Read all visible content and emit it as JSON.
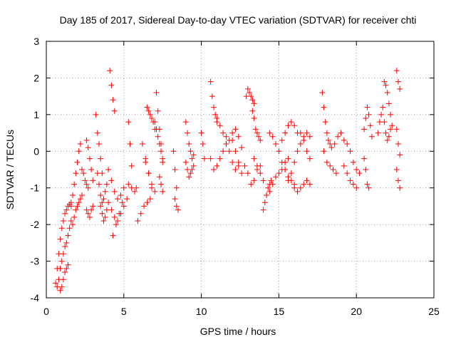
{
  "chart_data": {
    "type": "scatter",
    "title": "Day 185 of 2017, Sidereal Day-to-day VTEC variation (SDTVAR) for receiver chti",
    "xlabel": "GPS time / hours",
    "ylabel": "SDTVAR / TECUs",
    "xlim": [
      0,
      25
    ],
    "ylim": [
      -4,
      3
    ],
    "xticks": [
      0,
      5,
      10,
      15,
      20,
      25
    ],
    "yticks": [
      -4,
      -3,
      -2,
      -1,
      0,
      1,
      2,
      3
    ],
    "grid": true,
    "marker": "plus",
    "marker_color": "#ff0000",
    "series": [
      {
        "segments": [
          {
            "x": [
              0.6,
              0.7,
              0.8,
              0.9,
              1.0,
              1.1,
              1.2,
              1.3,
              1.4,
              1.5,
              1.6
            ],
            "y": [
              -3.6,
              -3.2,
              -2.8,
              -2.4,
              -2.1,
              -1.9,
              -1.7,
              -1.6,
              -1.5,
              -1.45,
              -1.4
            ]
          },
          {
            "x": [
              0.7,
              0.8,
              0.9,
              1.0,
              1.1,
              1.2,
              1.3,
              1.4,
              1.5,
              1.6
            ],
            "y": [
              -3.7,
              -3.5,
              -3.2,
              -3.0,
              -2.8,
              -2.6,
              -2.5,
              -2.3,
              -2.1,
              -1.9
            ]
          },
          {
            "x": [
              0.9,
              1.0,
              1.1,
              1.2,
              1.3,
              1.4
            ],
            "y": [
              -3.8,
              -3.7,
              -3.5,
              -3.3,
              -3.2,
              -3.1
            ]
          },
          {
            "x": [
              1.6,
              1.7,
              1.8,
              1.9,
              2.0,
              2.1,
              2.2
            ],
            "y": [
              -1.5,
              -1.2,
              -0.9,
              -0.6,
              -0.3,
              0.0,
              0.2
            ]
          },
          {
            "x": [
              1.7,
              1.8,
              1.9,
              2.0,
              2.1,
              2.2,
              2.3
            ],
            "y": [
              -2.0,
              -1.8,
              -1.6,
              -1.5,
              -1.4,
              -1.3,
              -1.2
            ]
          },
          {
            "x": [
              2.3,
              2.4,
              2.5,
              2.6,
              2.7
            ],
            "y": [
              -0.5,
              -0.6,
              -0.8,
              -0.9,
              -1.0
            ]
          },
          {
            "x": [
              2.6,
              2.7,
              2.8,
              2.9,
              3.0
            ],
            "y": [
              0.3,
              0.1,
              -0.2,
              -0.5,
              -0.8
            ]
          },
          {
            "x": [
              2.6,
              2.7,
              2.8,
              2.9,
              3.0
            ],
            "y": [
              -1.6,
              -1.7,
              -1.8,
              -1.6,
              -1.5
            ]
          },
          {
            "x": [
              3.2,
              3.3,
              3.4,
              3.5,
              3.6
            ],
            "y": [
              1.0,
              0.5,
              0.2,
              -0.2,
              -0.6
            ]
          },
          {
            "x": [
              3.3,
              3.4,
              3.5,
              3.6,
              3.7,
              3.8,
              3.9
            ],
            "y": [
              -0.6,
              -0.9,
              -1.2,
              -1.4,
              -1.3,
              -1.1,
              -0.9
            ]
          },
          {
            "x": [
              3.5,
              3.6,
              3.7,
              3.8,
              3.9,
              4.0
            ],
            "y": [
              -1.5,
              -1.7,
              -1.9,
              -1.8,
              -1.6,
              -1.4
            ]
          },
          {
            "x": [
              4.1,
              4.2,
              4.3,
              4.4
            ],
            "y": [
              2.2,
              1.8,
              1.4,
              1.1
            ]
          },
          {
            "x": [
              4.0,
              4.2,
              4.4,
              4.6,
              4.8,
              5.0
            ],
            "y": [
              -0.5,
              -0.8,
              -1.1,
              -1.3,
              -1.2,
              -1.0
            ]
          },
          {
            "x": [
              4.2,
              4.4,
              4.6,
              4.8,
              5.0,
              5.2
            ],
            "y": [
              -1.6,
              -1.8,
              -1.9,
              -1.7,
              -1.5,
              -1.3
            ]
          },
          {
            "x": [
              4.3,
              4.5,
              4.7,
              4.9
            ],
            "y": [
              -2.3,
              -2.0,
              -1.7,
              -1.4
            ]
          },
          {
            "x": [
              5.3,
              5.5,
              5.7,
              5.8
            ],
            "y": [
              -0.9,
              -1.0,
              -1.1,
              -1.0
            ]
          },
          {
            "x": [
              5.3,
              5.4,
              5.5
            ],
            "y": [
              0.8,
              0.2,
              -0.4
            ]
          },
          {
            "x": [
              5.9,
              6.1,
              6.3,
              6.5,
              6.7
            ],
            "y": [
              -1.9,
              -1.7,
              -1.5,
              -1.4,
              -1.3
            ]
          },
          {
            "x": [
              6.2,
              6.4,
              6.6,
              6.8
            ],
            "y": [
              0.2,
              -0.2,
              -0.6,
              -1.0
            ]
          },
          {
            "x": [
              6.4,
              6.6,
              6.8,
              7.0
            ],
            "y": [
              -0.3,
              -0.6,
              -0.9,
              -1.1
            ]
          },
          {
            "x": [
              6.5,
              6.6,
              6.7,
              6.8,
              6.9,
              7.0
            ],
            "y": [
              1.2,
              1.1,
              1.0,
              0.9,
              0.8,
              0.6
            ]
          },
          {
            "x": [
              7.0,
              7.1,
              7.2,
              7.3,
              7.4,
              7.5
            ],
            "y": [
              0.8,
              0.6,
              0.4,
              0.2,
              0.0,
              -0.2
            ]
          },
          {
            "x": [
              7.1,
              7.2,
              7.3,
              7.4,
              7.5
            ],
            "y": [
              1.6,
              1.1,
              0.6,
              0.2,
              -0.3
            ]
          },
          {
            "x": [
              7.3,
              7.4,
              7.5
            ],
            "y": [
              -0.7,
              -0.9,
              -1.1
            ]
          },
          {
            "x": [
              8.2,
              8.3,
              8.4
            ],
            "y": [
              0.0,
              -0.5,
              -1.0
            ]
          },
          {
            "x": [
              8.3,
              8.4,
              8.5
            ],
            "y": [
              -1.3,
              -1.5,
              -1.6
            ]
          },
          {
            "x": [
              9.0,
              9.1,
              9.2,
              9.3,
              9.4,
              9.5
            ],
            "y": [
              0.8,
              0.5,
              0.2,
              0.0,
              -0.2,
              -0.1
            ]
          },
          {
            "x": [
              9.0,
              9.1,
              9.2,
              9.3,
              9.4,
              9.5
            ],
            "y": [
              -0.3,
              -0.5,
              -0.7,
              -0.6,
              -0.5,
              -0.4
            ]
          },
          {
            "x": [
              10.0,
              10.1,
              10.2
            ],
            "y": [
              0.5,
              0.2,
              -0.2
            ]
          },
          {
            "x": [
              10.6,
              10.7,
              10.8,
              10.9,
              11.0
            ],
            "y": [
              1.9,
              1.5,
              1.2,
              1.0,
              0.8
            ]
          },
          {
            "x": [
              10.6,
              10.8,
              11.0,
              11.2,
              11.4,
              11.6
            ],
            "y": [
              -0.2,
              -0.5,
              -0.4,
              -0.2,
              0.0,
              0.2
            ]
          },
          {
            "x": [
              11.0,
              11.2,
              11.4,
              11.6,
              11.8,
              12.0,
              12.2,
              12.4
            ],
            "y": [
              0.9,
              0.7,
              0.5,
              0.4,
              0.3,
              0.5,
              0.6,
              0.4
            ]
          },
          {
            "x": [
              11.6,
              11.8,
              12.0,
              12.2,
              12.4,
              12.6
            ],
            "y": [
              0.2,
              0.0,
              -0.3,
              -0.5,
              -0.3,
              0.1
            ]
          },
          {
            "x": [
              12.0,
              12.2,
              12.4,
              12.6,
              12.8
            ],
            "y": [
              0.3,
              0.0,
              -0.4,
              -0.6,
              -0.4
            ]
          },
          {
            "x": [
              12.9,
              13.0,
              13.1,
              13.2,
              13.3,
              13.4
            ],
            "y": [
              1.5,
              1.7,
              1.6,
              1.5,
              1.4,
              1.3
            ]
          },
          {
            "x": [
              13.3,
              13.4,
              13.5,
              13.6,
              13.7,
              13.8
            ],
            "y": [
              1.1,
              0.9,
              0.6,
              0.5,
              0.4,
              0.3
            ]
          },
          {
            "x": [
              13.0,
              13.2,
              13.4,
              13.6,
              13.8
            ],
            "y": [
              -0.6,
              -0.9,
              -0.8,
              -0.5,
              -0.4
            ]
          },
          {
            "x": [
              13.4,
              13.6,
              13.8,
              14.0
            ],
            "y": [
              -0.2,
              -0.4,
              -0.6,
              -0.8
            ]
          },
          {
            "x": [
              14.0,
              14.1,
              14.2,
              14.3,
              14.4,
              14.5
            ],
            "y": [
              -1.6,
              -1.4,
              -1.2,
              -1.0,
              -0.9,
              -0.8
            ]
          },
          {
            "x": [
              14.2,
              14.4,
              14.6,
              14.8,
              15.0,
              15.2,
              15.4,
              15.6
            ],
            "y": [
              -1.2,
              -1.1,
              -0.9,
              -0.7,
              -0.6,
              -0.5,
              -0.3,
              -0.2
            ]
          },
          {
            "x": [
              14.4,
              14.6,
              14.8,
              15.0,
              15.2,
              15.4,
              15.6,
              15.8,
              16.0
            ],
            "y": [
              0.5,
              0.4,
              0.2,
              0.0,
              -0.3,
              -0.5,
              -0.7,
              -0.8,
              -0.9
            ]
          },
          {
            "x": [
              15.2,
              15.4,
              15.6,
              15.8,
              16.0,
              16.2
            ],
            "y": [
              0.3,
              0.5,
              0.7,
              0.8,
              0.7,
              0.5
            ]
          },
          {
            "x": [
              15.6,
              15.8,
              16.0,
              16.2,
              16.4,
              16.6,
              16.8,
              17.0
            ],
            "y": [
              -0.8,
              -0.6,
              -0.3,
              0.0,
              0.2,
              0.4,
              0.5,
              0.4
            ]
          },
          {
            "x": [
              16.0,
              16.2,
              16.4,
              16.6,
              16.8,
              17.0
            ],
            "y": [
              -1.0,
              -1.1,
              -1.0,
              -0.9,
              -0.8,
              -0.9
            ]
          },
          {
            "x": [
              16.4,
              16.6,
              16.8,
              17.0
            ],
            "y": [
              0.5,
              0.3,
              0.0,
              -0.2
            ]
          },
          {
            "x": [
              17.8,
              17.9,
              18.0,
              18.1,
              18.2,
              18.3
            ],
            "y": [
              1.6,
              1.2,
              0.8,
              0.5,
              0.3,
              0.2
            ]
          },
          {
            "x": [
              17.9,
              18.1,
              18.3,
              18.5,
              18.7
            ],
            "y": [
              0.0,
              -0.3,
              -0.4,
              -0.5,
              -0.6
            ]
          },
          {
            "x": [
              18.4,
              18.6,
              18.8,
              19.0,
              19.2
            ],
            "y": [
              0.1,
              0.2,
              0.4,
              0.5,
              0.3
            ]
          },
          {
            "x": [
              19.2,
              19.4,
              19.6,
              19.8,
              20.0
            ],
            "y": [
              -0.4,
              -0.6,
              -0.8,
              -0.9,
              -1.0
            ]
          },
          {
            "x": [
              19.4,
              19.6,
              19.8,
              20.0,
              20.2
            ],
            "y": [
              0.2,
              0.0,
              -0.3,
              -0.5,
              -0.6
            ]
          },
          {
            "x": [
              20.5,
              20.6,
              20.7,
              20.8,
              20.9,
              21.0
            ],
            "y": [
              0.6,
              0.9,
              1.2,
              1.0,
              0.7,
              0.4
            ]
          },
          {
            "x": [
              20.5,
              20.6,
              20.7,
              20.8
            ],
            "y": [
              -0.2,
              -0.5,
              -0.9,
              -1.0
            ]
          },
          {
            "x": [
              21.4,
              21.5,
              21.6,
              21.7
            ],
            "y": [
              0.5,
              0.8,
              1.0,
              1.2
            ]
          },
          {
            "x": [
              21.8,
              21.9,
              22.0,
              22.1,
              22.2,
              22.3
            ],
            "y": [
              1.9,
              1.8,
              1.6,
              1.3,
              1.0,
              0.7
            ]
          },
          {
            "x": [
              21.8,
              21.9,
              22.0,
              22.1,
              22.2
            ],
            "y": [
              0.8,
              0.5,
              0.3,
              0.4,
              0.6
            ]
          },
          {
            "x": [
              22.6,
              22.7,
              22.8
            ],
            "y": [
              2.2,
              1.9,
              1.7
            ]
          },
          {
            "x": [
              22.6,
              22.7,
              22.8
            ],
            "y": [
              0.6,
              0.2,
              -0.1
            ]
          },
          {
            "x": [
              22.6,
              22.7,
              22.8
            ],
            "y": [
              -0.5,
              -0.8,
              -1.0
            ]
          }
        ]
      }
    ]
  }
}
